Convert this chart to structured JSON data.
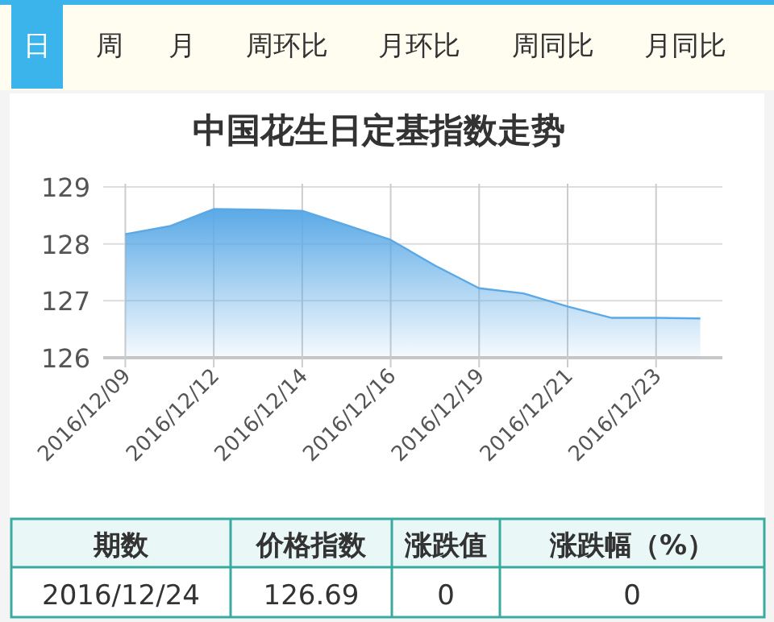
{
  "chart_data": {
    "type": "area",
    "title": "中国花生日定基指数走势",
    "categories": [
      "2016/12/09",
      null,
      "2016/12/12",
      null,
      "2016/12/14",
      null,
      "2016/12/16",
      null,
      "2016/12/19",
      null,
      "2016/12/21",
      null,
      "2016/12/23",
      null
    ],
    "values": [
      128.17,
      128.31,
      128.61,
      128.6,
      128.58,
      128.33,
      128.07,
      127.62,
      127.22,
      127.13,
      126.9,
      126.7,
      126.7,
      126.69
    ],
    "color": "#5aa9e6",
    "ylim": [
      126,
      129
    ],
    "yticks": [
      126,
      127,
      128,
      129
    ],
    "grid": true,
    "annotations": [
      "日",
      "周",
      "月",
      "周环比",
      "月环比",
      "周同比",
      "月同比",
      "期数",
      "价格指数",
      "涨跌值",
      "涨跌幅（%）",
      "2016/12/24",
      "126.69",
      "0",
      "0"
    ]
  }
}
